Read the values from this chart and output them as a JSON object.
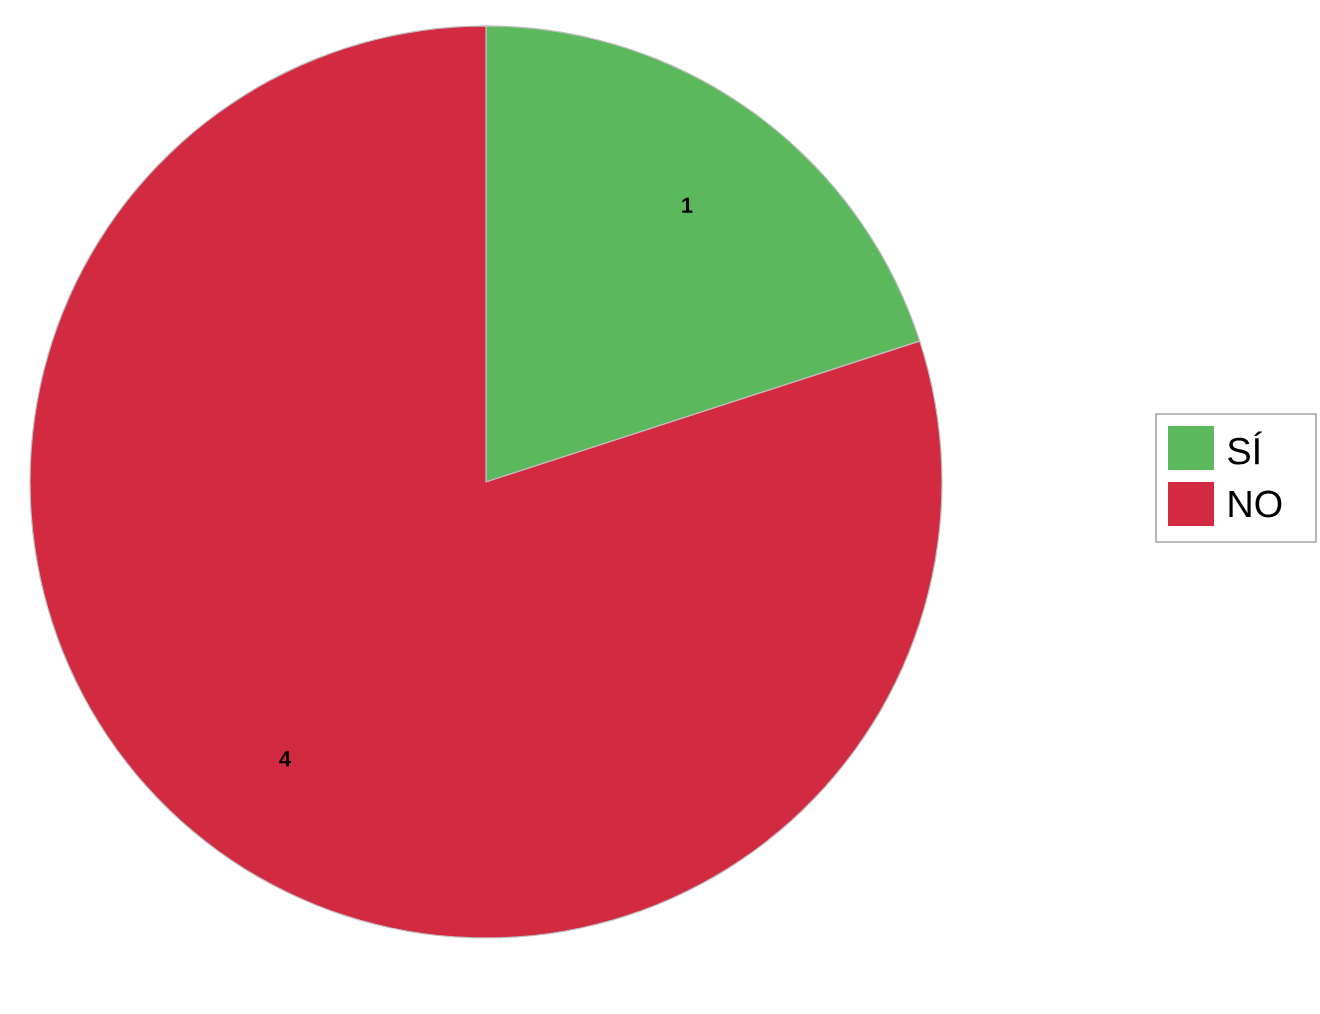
{
  "chart_data": {
    "type": "pie",
    "categories": [
      "SÍ",
      "NO"
    ],
    "values": [
      1,
      4
    ],
    "colors": [
      "#5cb85c",
      "#d12a41"
    ],
    "data_labels": true,
    "legend": "right"
  }
}
